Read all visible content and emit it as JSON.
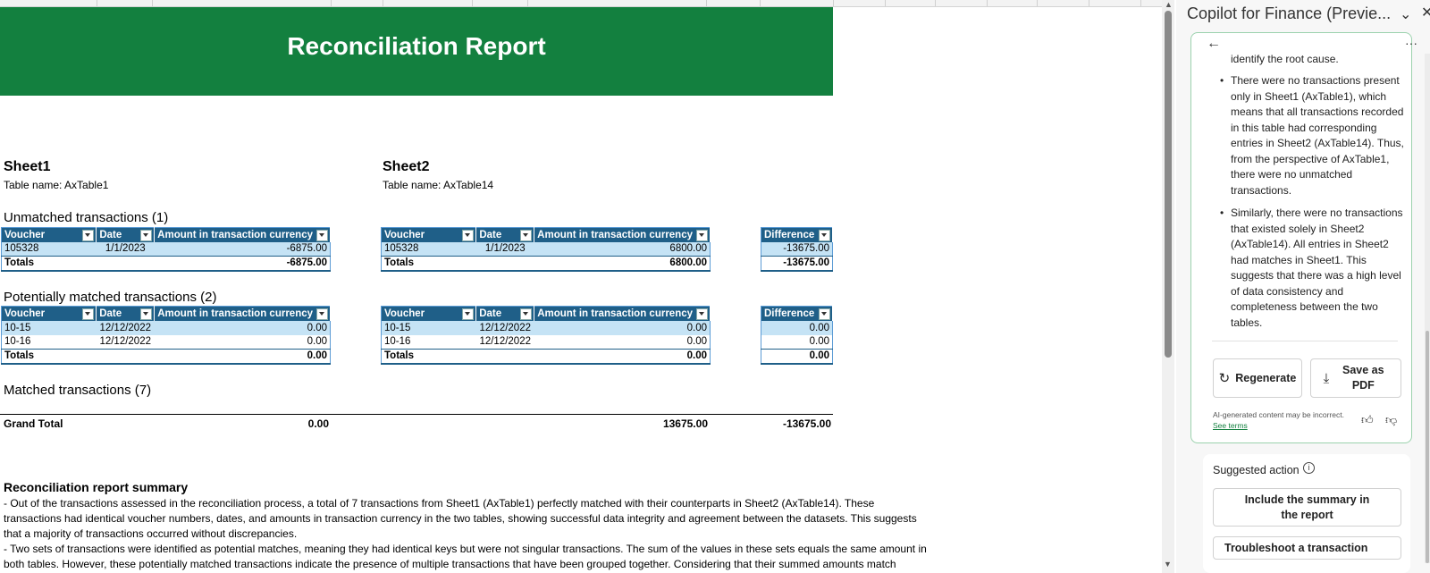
{
  "report": {
    "title": "Reconciliation Report",
    "sheet1": {
      "title": "Sheet1",
      "table_name": "Table name: AxTable1"
    },
    "sheet2": {
      "title": "Sheet2",
      "table_name": "Table name: AxTable14"
    },
    "unmatched_title": "Unmatched transactions (1)",
    "potential_title": "Potentially matched transactions (2)",
    "matched_title": "Matched transactions (7)",
    "headers": {
      "voucher": "Voucher",
      "date": "Date",
      "amount": "Amount in transaction currency",
      "difference": "Difference"
    },
    "totals_label": "Totals",
    "unmatched": {
      "sheet1": {
        "voucher": "105328",
        "date": "1/1/2023",
        "amount": "-6875.00",
        "total": "-6875.00"
      },
      "sheet2": {
        "voucher": "105328",
        "date": "1/1/2023",
        "amount": "6800.00",
        "total": "6800.00"
      },
      "difference": {
        "value": "-13675.00",
        "total": "-13675.00"
      }
    },
    "potential": {
      "sheet1": {
        "rows": [
          {
            "voucher": "10-15",
            "date": "12/12/2022",
            "amount": "0.00"
          },
          {
            "voucher": "10-16",
            "date": "12/12/2022",
            "amount": "0.00"
          }
        ],
        "total": "0.00"
      },
      "sheet2": {
        "rows": [
          {
            "voucher": "10-15",
            "date": "12/12/2022",
            "amount": "0.00"
          },
          {
            "voucher": "10-16",
            "date": "12/12/2022",
            "amount": "0.00"
          }
        ],
        "total": "0.00"
      },
      "difference": {
        "rows": [
          "0.00",
          "0.00"
        ],
        "total": "0.00"
      }
    },
    "grand_total": {
      "label": "Grand Total",
      "sheet1": "0.00",
      "sheet2": "13675.00",
      "difference": "-13675.00"
    },
    "summary": {
      "title": "Reconciliation report summary",
      "lines": [
        "- Out of the transactions assessed in the reconciliation process, a total of 7 transactions from Sheet1 (AxTable1) perfectly matched with their counterparts in Sheet2 (AxTable14). These",
        "transactions had identical voucher numbers, dates, and amounts in transaction currency in the two tables, showing successful data integrity and agreement between the datasets. This suggests",
        "that a majority of transactions occurred without discrepancies.",
        "- Two sets of transactions were identified as potential matches, meaning they had identical keys but were not singular transactions. The sum of the values in these sets equals the same amount in",
        "both tables. However, these potentially matched transactions indicate the presence of multiple transactions that have been grouped together. Considering that their summed amounts match"
      ]
    }
  },
  "copilot": {
    "title": "Copilot for Finance (Previe...",
    "partial_line": "identify the root cause.",
    "bullets": [
      "There were no transactions present only in Sheet1 (AxTable1), which means that all transactions recorded in this table had corresponding entries in Sheet2 (AxTable14). Thus, from the perspective of AxTable1, there were no unmatched transactions.",
      "Similarly, there were no transactions that existed solely in Sheet2 (AxTable14). All entries in Sheet2 had matches in Sheet1. This suggests that there was a high level of data consistency and completeness between the two tables."
    ],
    "regenerate_label": "Regenerate",
    "save_pdf_label": "Save as PDF",
    "ai_note": "AI-generated content may be incorrect.",
    "see_terms": "See terms",
    "suggested_action_title": "Suggested action",
    "actions": [
      "Include the summary in the report",
      "Troubleshoot a transaction"
    ]
  },
  "colors": {
    "banner": "#13803f",
    "table_header": "#1f5f88",
    "row_band": "#c5e3f5"
  },
  "icons": [
    "back-arrow-icon",
    "more-icon",
    "regenerate-icon",
    "download-icon",
    "thumbs-up-icon",
    "thumbs-down-icon",
    "info-icon",
    "chevron-down-icon",
    "close-icon"
  ]
}
